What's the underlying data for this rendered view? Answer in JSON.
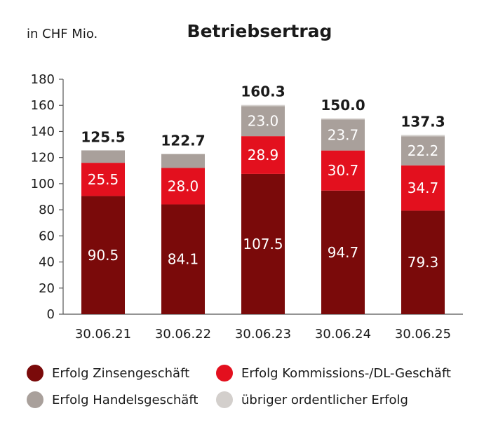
{
  "chart_data": {
    "type": "bar",
    "stacked": true,
    "title": "Betriebsertrag",
    "unit_label": "in CHF Mio.",
    "categories": [
      "30.06.21",
      "30.06.22",
      "30.06.23",
      "30.06.24",
      "30.06.25"
    ],
    "series": [
      {
        "name": "Erfolg Zinsengeschäft",
        "color": "#7a0a0a",
        "values": [
          90.5,
          84.1,
          107.5,
          94.7,
          79.3
        ]
      },
      {
        "name": "Erfolg Kommissions-/DL-Geschäft",
        "color": "#e3101e",
        "values": [
          25.5,
          28.0,
          28.9,
          30.7,
          34.7
        ]
      },
      {
        "name": "Erfolg Handelsgeschäft",
        "color": "#a9a09b",
        "values": [
          9.5,
          10.6,
          23.0,
          23.7,
          22.2
        ]
      },
      {
        "name": "übriger ordentlicher Erfolg",
        "color": "#d3cfcc",
        "values": [
          0.0,
          0.0,
          0.9,
          0.9,
          1.1
        ]
      }
    ],
    "segment_labels": [
      [
        "90.5",
        "84.1",
        "107.5",
        "94.7",
        "79.3"
      ],
      [
        "25.5",
        "28.0",
        "28.9",
        "30.7",
        "34.7"
      ],
      [
        "",
        "",
        "23.0",
        "23.7",
        "22.2"
      ]
    ],
    "totals": [
      "125.5",
      "122.7",
      "160.3",
      "150.0",
      "137.3"
    ],
    "ylim": [
      0,
      180
    ],
    "yticks": [
      0,
      20,
      40,
      60,
      80,
      100,
      120,
      140,
      160,
      180
    ],
    "grid": false,
    "legend_position": "bottom"
  }
}
